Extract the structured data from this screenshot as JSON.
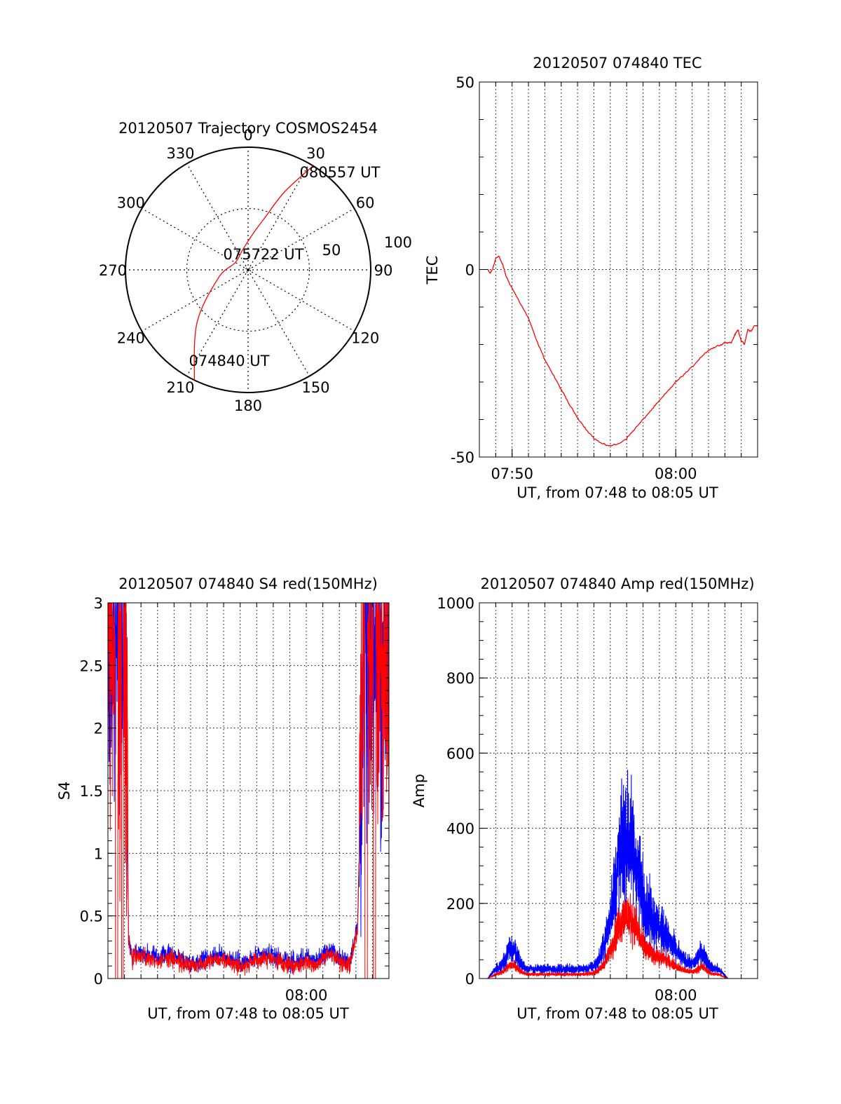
{
  "colors": {
    "trajectory": "#ff0000",
    "red": "#ff0000",
    "blue": "#0000ff",
    "axis": "#000000",
    "grid": "#000000"
  },
  "chart_data": [
    {
      "id": "polar",
      "type": "polar-trajectory",
      "title": "20120507 Trajectory COSMOS2454",
      "angle_labels": [
        "0",
        "30",
        "60",
        "90",
        "120",
        "150",
        "180",
        "210",
        "240",
        "270",
        "300",
        "330"
      ],
      "radial_labels": [
        "50",
        "100"
      ],
      "rmax": 100,
      "grid": true,
      "trajectory": {
        "color": "#ff0000",
        "points": [
          [
            206,
            100
          ],
          [
            224,
            60
          ],
          [
            255,
            25
          ],
          [
            300,
            12
          ],
          [
            345,
            17
          ],
          [
            8,
            30
          ],
          [
            18,
            45
          ],
          [
            25,
            70
          ],
          [
            32,
            100
          ]
        ]
      },
      "annotations": [
        {
          "text": "080557 UT",
          "anchor": "end-of-track"
        },
        {
          "text": "075722 UT",
          "anchor": "closest-approach"
        },
        {
          "text": "074840 UT",
          "anchor": "start-of-track"
        }
      ]
    },
    {
      "id": "tec",
      "type": "line",
      "title": "20120507 074840 TEC",
      "xlabel": "UT, from 07:48 to 08:05 UT",
      "ylabel": "TEC",
      "xlim": [
        48.0,
        65.0
      ],
      "ylim": [
        -50,
        50
      ],
      "xticks": [
        {
          "value": 50.0,
          "label": "07:50"
        },
        {
          "value": 60.0,
          "label": "08:00"
        }
      ],
      "yticks": [
        {
          "value": 50,
          "label": "50"
        },
        {
          "value": 0,
          "label": "0"
        },
        {
          "value": -50,
          "label": "-50"
        }
      ],
      "grid": true,
      "series": [
        {
          "color": "#ff0000",
          "x": [
            48.5,
            48.65,
            48.8,
            49.0,
            49.2,
            49.45,
            49.65,
            50.0,
            50.5,
            51.0,
            51.5,
            52.0,
            52.5,
            53.0,
            53.5,
            54.0,
            54.5,
            55.0,
            55.5,
            56.0,
            56.5,
            57.0,
            57.5,
            58.0,
            58.5,
            59.0,
            59.5,
            60.0,
            60.5,
            61.0,
            61.5,
            62.0,
            62.5,
            63.0,
            63.4,
            63.6,
            63.8,
            64.0,
            64.2,
            64.4,
            64.6,
            64.8,
            65.0
          ],
          "y": [
            0,
            -1,
            0,
            3,
            3.5,
            1,
            -2,
            -5,
            -9,
            -13,
            -19,
            -24,
            -28,
            -32,
            -36,
            -39.5,
            -42.5,
            -45,
            -46.5,
            -47,
            -46.5,
            -45,
            -42.5,
            -40,
            -37.5,
            -35,
            -32.5,
            -30,
            -28,
            -26,
            -23.5,
            -21.5,
            -20.5,
            -19.5,
            -19.5,
            -17.5,
            -16,
            -19,
            -20,
            -16,
            -16.5,
            -15,
            -15
          ]
        }
      ]
    },
    {
      "id": "s4",
      "type": "line",
      "title": "20120507 074840 S4 red(150MHz)",
      "xlabel": "UT, from 07:48 to 08:05 UT",
      "ylabel": "S4",
      "xlim": [
        48.0,
        65.0
      ],
      "ylim": [
        0,
        3
      ],
      "xticks": [
        {
          "value": 60.0,
          "label": "08:00"
        }
      ],
      "yticks": [
        {
          "value": 0,
          "label": "0"
        },
        {
          "value": 0.5,
          "label": "0.5"
        },
        {
          "value": 1,
          "label": "1"
        },
        {
          "value": 1.5,
          "label": "1.5"
        },
        {
          "value": 2,
          "label": "2"
        },
        {
          "value": 2.5,
          "label": "2.5"
        },
        {
          "value": 3,
          "label": "3"
        }
      ],
      "grid": true,
      "series": [
        {
          "color": "#0000ff",
          "kind": "s4-blue"
        },
        {
          "color": "#ff0000",
          "kind": "s4-red"
        }
      ]
    },
    {
      "id": "amp",
      "type": "line",
      "title": "20120507 074840 Amp red(150MHz)",
      "xlabel": "UT, from 07:48 to 08:05 UT",
      "ylabel": "Amp",
      "xlim": [
        48.0,
        65.0
      ],
      "ylim": [
        0,
        1000
      ],
      "xticks": [
        {
          "value": 60.0,
          "label": "08:00"
        }
      ],
      "yticks": [
        {
          "value": 0,
          "label": "0"
        },
        {
          "value": 200,
          "label": "200"
        },
        {
          "value": 400,
          "label": "400"
        },
        {
          "value": 600,
          "label": "600"
        },
        {
          "value": 800,
          "label": "800"
        },
        {
          "value": 1000,
          "label": "1000"
        }
      ],
      "grid": true,
      "series": [
        {
          "color": "#0000ff",
          "kind": "amp-blue"
        },
        {
          "color": "#ff0000",
          "kind": "amp-red"
        }
      ]
    }
  ]
}
